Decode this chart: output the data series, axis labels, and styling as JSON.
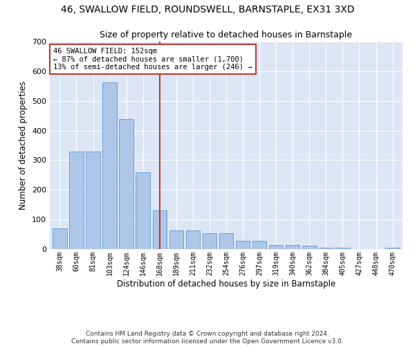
{
  "title": "46, SWALLOW FIELD, ROUNDSWELL, BARNSTAPLE, EX31 3XD",
  "subtitle": "Size of property relative to detached houses in Barnstaple",
  "xlabel": "Distribution of detached houses by size in Barnstaple",
  "ylabel": "Number of detached properties",
  "categories": [
    "38sqm",
    "60sqm",
    "81sqm",
    "103sqm",
    "124sqm",
    "146sqm",
    "168sqm",
    "189sqm",
    "211sqm",
    "232sqm",
    "254sqm",
    "276sqm",
    "297sqm",
    "319sqm",
    "340sqm",
    "362sqm",
    "384sqm",
    "405sqm",
    "427sqm",
    "448sqm",
    "470sqm"
  ],
  "values": [
    70,
    328,
    328,
    562,
    438,
    258,
    130,
    63,
    63,
    53,
    53,
    28,
    28,
    15,
    15,
    12,
    5,
    5,
    0,
    0,
    5
  ],
  "bar_color": "#aec6e8",
  "bar_edge_color": "#5b9bd5",
  "vline_x": 6.0,
  "vline_color": "#c0392b",
  "annotation_text": "46 SWALLOW FIELD: 152sqm\n← 87% of detached houses are smaller (1,700)\n13% of semi-detached houses are larger (246) →",
  "annotation_box_color": "#ffffff",
  "annotation_box_edge": "#c0392b",
  "ylim": [
    0,
    700
  ],
  "yticks": [
    0,
    100,
    200,
    300,
    400,
    500,
    600,
    700
  ],
  "bg_color": "#dce6f5",
  "grid_color": "#ffffff",
  "footer": "Contains HM Land Registry data © Crown copyright and database right 2024.\nContains public sector information licensed under the Open Government Licence v3.0.",
  "title_fontsize": 10,
  "subtitle_fontsize": 9,
  "xlabel_fontsize": 8.5,
  "ylabel_fontsize": 8.5,
  "footer_fontsize": 6.5,
  "annot_fontsize": 7.5
}
